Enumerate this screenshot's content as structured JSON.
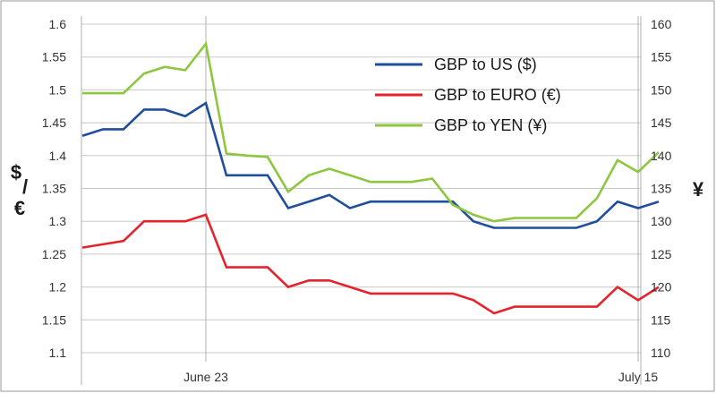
{
  "chart_data": {
    "type": "line",
    "y_left": {
      "ylim": [
        1.1,
        1.6
      ],
      "ticks": [
        "1.6",
        "1.55",
        "1.5",
        "1.45",
        "1.4",
        "1.35",
        "1.3",
        "1.25",
        "1.2",
        "1.15",
        "1.1"
      ],
      "label_top": "$",
      "label_slash": "/",
      "label_bottom": "€"
    },
    "y_right": {
      "ylim": [
        110,
        160
      ],
      "ticks": [
        "160",
        "155",
        "150",
        "145",
        "140",
        "135",
        "130",
        "125",
        "120",
        "115",
        "110"
      ],
      "label": "¥"
    },
    "x_labels": [
      {
        "label": "June 23",
        "index": 6
      },
      {
        "label": "July 15",
        "index": 27
      }
    ],
    "grid": true,
    "legend_position": "top-right",
    "series": [
      {
        "name": "GBP to US ($)",
        "axis": "left",
        "color": "#1f4e9c",
        "values": [
          1.43,
          1.44,
          1.44,
          1.47,
          1.47,
          1.46,
          1.48,
          1.37,
          1.37,
          1.37,
          1.32,
          1.33,
          1.34,
          1.32,
          1.33,
          1.33,
          1.33,
          1.33,
          1.33,
          1.3,
          1.29,
          1.29,
          1.29,
          1.29,
          1.29,
          1.3,
          1.33,
          1.32,
          1.33
        ]
      },
      {
        "name": "GBP to EURO (€)",
        "axis": "left",
        "color": "#e5232b",
        "values": [
          1.26,
          1.265,
          1.27,
          1.3,
          1.3,
          1.3,
          1.31,
          1.23,
          1.23,
          1.23,
          1.2,
          1.21,
          1.21,
          1.2,
          1.19,
          1.19,
          1.19,
          1.19,
          1.19,
          1.18,
          1.16,
          1.17,
          1.17,
          1.17,
          1.17,
          1.17,
          1.2,
          1.18,
          1.2
        ]
      },
      {
        "name": "GBP to YEN (¥)",
        "axis": "right",
        "color": "#8dc63f",
        "values": [
          149.5,
          149.5,
          149.5,
          152.5,
          153.5,
          153,
          157,
          140.3,
          140,
          139.8,
          134.5,
          137,
          138,
          137,
          136,
          136,
          136,
          136.5,
          132.5,
          131,
          130,
          130.5,
          130.5,
          130.5,
          130.5,
          133.5,
          139.3,
          137.5,
          140.5
        ]
      }
    ]
  }
}
